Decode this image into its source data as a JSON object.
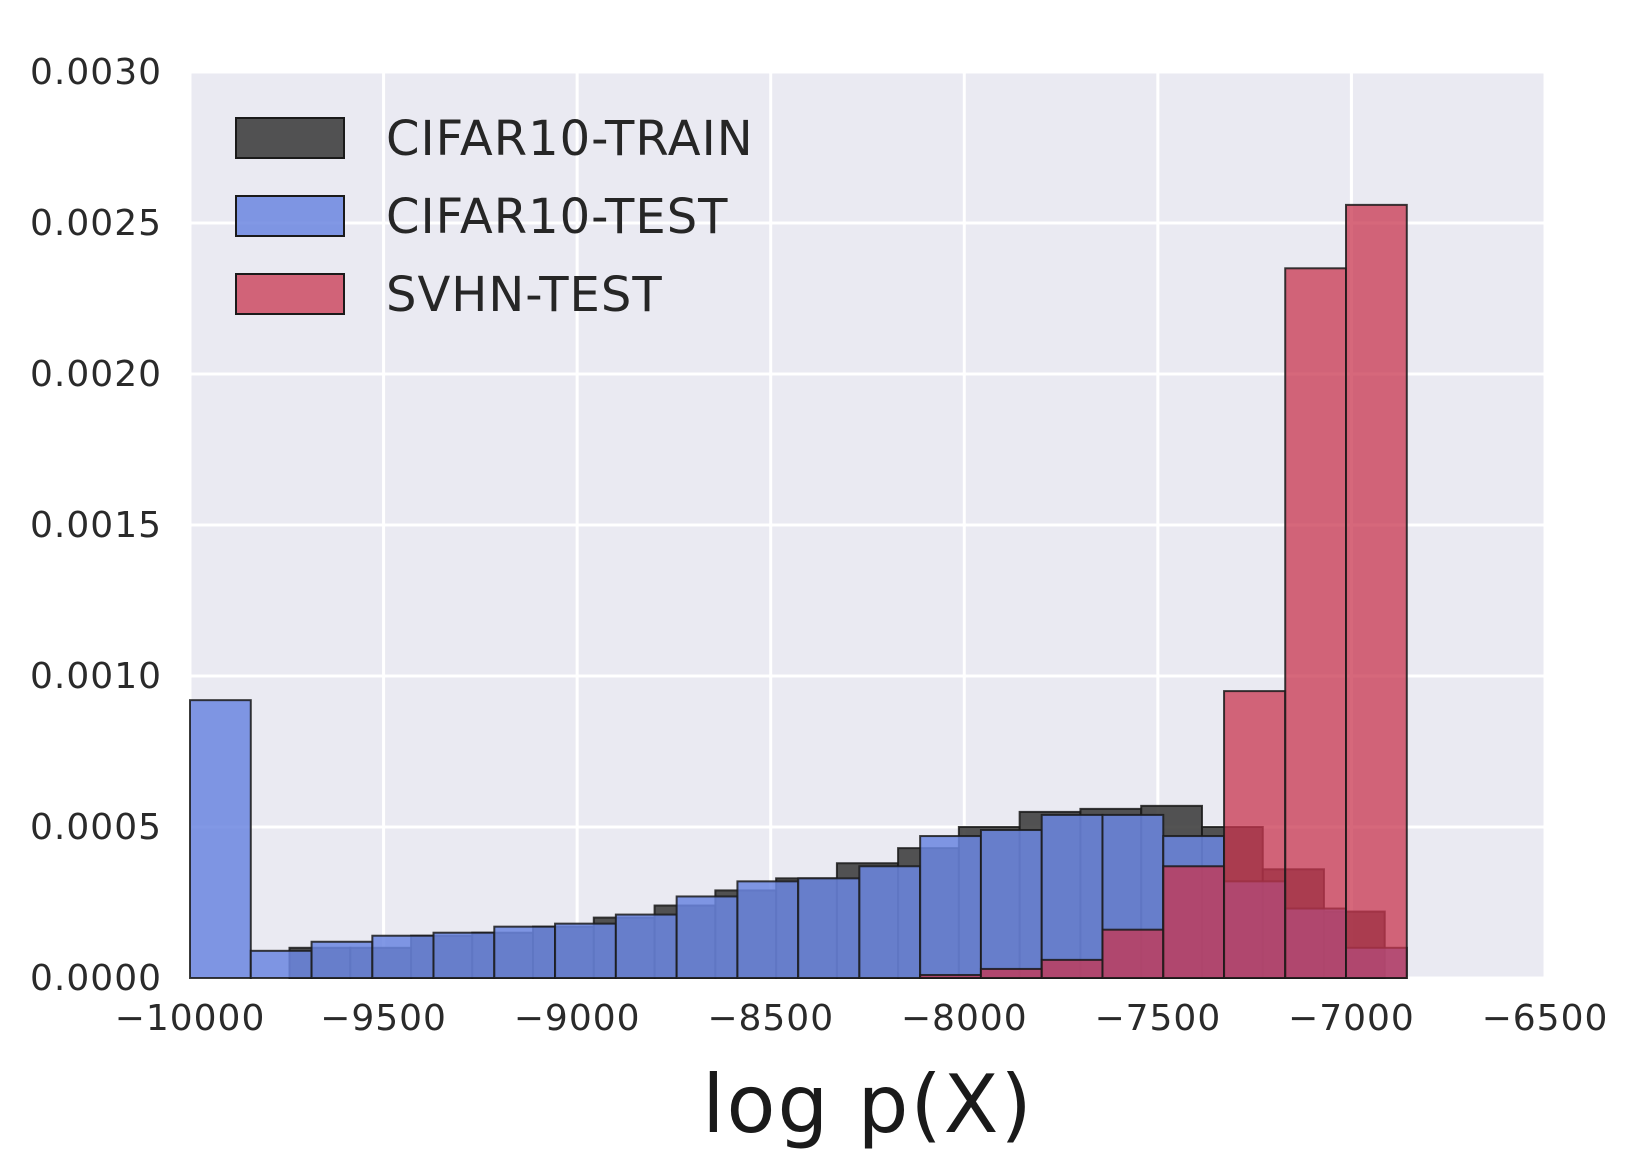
{
  "chart_data": {
    "type": "bar",
    "subtype": "overlaid-histogram",
    "title": "",
    "xlabel": "log p(X)",
    "ylabel": "",
    "xlim": [
      -10000,
      -6500
    ],
    "ylim": [
      0,
      0.003
    ],
    "x_ticks": [
      -10000,
      -9500,
      -9000,
      -8500,
      -8000,
      -7500,
      -7000,
      -6500
    ],
    "x_tick_labels": [
      "−10000",
      "−9500",
      "−9000",
      "−8500",
      "−8000",
      "−7500",
      "−7000",
      "−6500"
    ],
    "y_ticks": [
      0,
      0.0005,
      0.001,
      0.0015,
      0.002,
      0.0025,
      0.003
    ],
    "y_tick_labels": [
      "0.0000",
      "0.0005",
      "0.0010",
      "0.0015",
      "0.0020",
      "0.0025",
      "0.0030"
    ],
    "grid": true,
    "legend_position": "top-left",
    "background": "#eaeaf2",
    "series": [
      {
        "name": "CIFAR10-TRAIN",
        "color": "#404040",
        "opacity": 0.9,
        "bin_edges": [
          -9900,
          -9743,
          -9586,
          -9429,
          -9271,
          -9114,
          -8957,
          -8800,
          -8643,
          -8486,
          -8329,
          -8171,
          -8014,
          -7857,
          -7700,
          -7543,
          -7386,
          -7229,
          -7071,
          -6914
        ],
        "values": [
          0.0,
          0.0001,
          0.0001,
          0.00014,
          0.00015,
          0.00017,
          0.0002,
          0.00024,
          0.00029,
          0.00033,
          0.00038,
          0.00043,
          0.0005,
          0.00055,
          0.00056,
          0.00057,
          0.0005,
          0.00036,
          0.00022
        ]
      },
      {
        "name": "CIFAR10-TEST",
        "color": "#6b86e0",
        "opacity": 0.85,
        "bin_edges": [
          -10000,
          -9843,
          -9686,
          -9529,
          -9371,
          -9214,
          -9057,
          -8900,
          -8743,
          -8586,
          -8429,
          -8271,
          -8114,
          -7957,
          -7800,
          -7643,
          -7486,
          -7329,
          -7171,
          -7014,
          -6857
        ],
        "values": [
          0.00092,
          9e-05,
          0.00012,
          0.00014,
          0.00015,
          0.00017,
          0.00018,
          0.00021,
          0.00027,
          0.00032,
          0.00033,
          0.00037,
          0.00047,
          0.00049,
          0.00054,
          0.00054,
          0.00047,
          0.00032,
          0.00023,
          0.0001
        ]
      },
      {
        "name": "SVHN-TEST",
        "color": "#c8354f",
        "opacity": 0.75,
        "bin_edges": [
          -10000,
          -9843,
          -9686,
          -9529,
          -9371,
          -9214,
          -9057,
          -8900,
          -8743,
          -8586,
          -8429,
          -8271,
          -8114,
          -7957,
          -7800,
          -7643,
          -7486,
          -7329,
          -7171,
          -7014,
          -6857
        ],
        "values": [
          0,
          0,
          0,
          0,
          0,
          0,
          0,
          0,
          0,
          0,
          0,
          0,
          1e-05,
          3e-05,
          6e-05,
          0.00016,
          0.00037,
          0.00095,
          0.00235,
          0.00256
        ]
      }
    ]
  }
}
